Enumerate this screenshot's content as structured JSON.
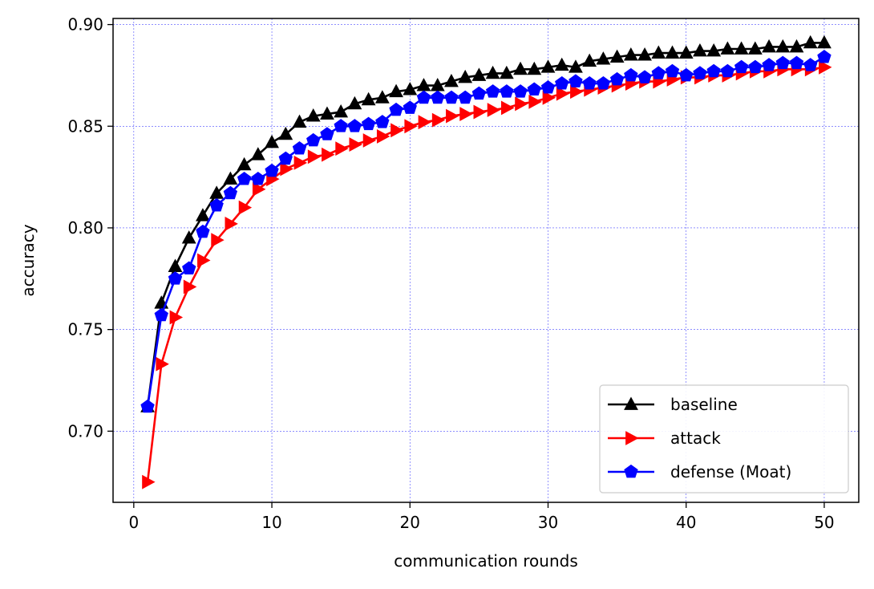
{
  "chart_data": {
    "type": "line",
    "xlabel": "communication rounds",
    "ylabel": "accuracy",
    "xlim": [
      -1.5,
      52.5
    ],
    "ylim": [
      0.665,
      0.903
    ],
    "xticks": [
      0,
      10,
      20,
      30,
      40,
      50
    ],
    "xtick_labels": [
      "0",
      "10",
      "20",
      "30",
      "40",
      "50"
    ],
    "yticks": [
      0.7,
      0.75,
      0.8,
      0.85,
      0.9
    ],
    "ytick_labels": [
      "0.70",
      "0.75",
      "0.80",
      "0.85",
      "0.90"
    ],
    "grid": true,
    "legend_position": "lower-right",
    "x": [
      1,
      2,
      3,
      4,
      5,
      6,
      7,
      8,
      9,
      10,
      11,
      12,
      13,
      14,
      15,
      16,
      17,
      18,
      19,
      20,
      21,
      22,
      23,
      24,
      25,
      26,
      27,
      28,
      29,
      30,
      31,
      32,
      33,
      34,
      35,
      36,
      37,
      38,
      39,
      40,
      41,
      42,
      43,
      44,
      45,
      46,
      47,
      48,
      49,
      50
    ],
    "series": [
      {
        "name": "baseline",
        "color": "#000000",
        "marker": "triangle-up",
        "values": [
          0.712,
          0.763,
          0.781,
          0.795,
          0.806,
          0.817,
          0.824,
          0.831,
          0.836,
          0.842,
          0.846,
          0.852,
          0.855,
          0.856,
          0.857,
          0.861,
          0.863,
          0.864,
          0.867,
          0.868,
          0.87,
          0.87,
          0.872,
          0.874,
          0.875,
          0.876,
          0.876,
          0.878,
          0.878,
          0.879,
          0.88,
          0.879,
          0.882,
          0.883,
          0.884,
          0.885,
          0.885,
          0.886,
          0.886,
          0.886,
          0.887,
          0.887,
          0.888,
          0.888,
          0.888,
          0.889,
          0.889,
          0.889,
          0.891,
          0.891
        ]
      },
      {
        "name": "attack",
        "color": "#ff0000",
        "marker": "triangle-right",
        "values": [
          0.675,
          0.733,
          0.756,
          0.771,
          0.784,
          0.794,
          0.802,
          0.81,
          0.819,
          0.824,
          0.829,
          0.832,
          0.835,
          0.836,
          0.839,
          0.841,
          0.843,
          0.845,
          0.848,
          0.85,
          0.852,
          0.853,
          0.855,
          0.856,
          0.857,
          0.858,
          0.859,
          0.861,
          0.862,
          0.864,
          0.866,
          0.867,
          0.868,
          0.869,
          0.87,
          0.871,
          0.872,
          0.872,
          0.873,
          0.874,
          0.874,
          0.875,
          0.875,
          0.876,
          0.877,
          0.877,
          0.878,
          0.878,
          0.878,
          0.879
        ]
      },
      {
        "name": "defense (Moat)",
        "color": "#0000ff",
        "marker": "pentagon",
        "values": [
          0.712,
          0.757,
          0.775,
          0.78,
          0.798,
          0.811,
          0.817,
          0.824,
          0.824,
          0.828,
          0.834,
          0.839,
          0.843,
          0.846,
          0.85,
          0.85,
          0.851,
          0.852,
          0.858,
          0.859,
          0.864,
          0.864,
          0.864,
          0.864,
          0.866,
          0.867,
          0.867,
          0.867,
          0.868,
          0.869,
          0.871,
          0.872,
          0.871,
          0.871,
          0.873,
          0.875,
          0.874,
          0.876,
          0.877,
          0.875,
          0.876,
          0.877,
          0.877,
          0.879,
          0.879,
          0.88,
          0.881,
          0.881,
          0.88,
          0.884
        ]
      }
    ]
  }
}
